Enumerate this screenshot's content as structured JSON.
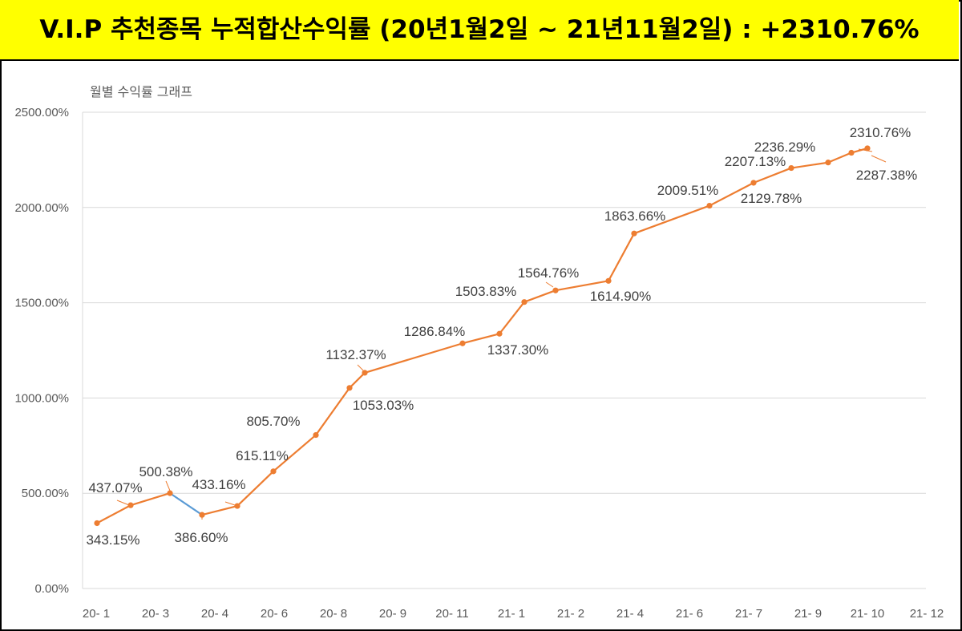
{
  "banner": {
    "title": "V.I.P 추천종목 누적합산수익률 (20년1월2일 ~ 21년11월2일) : +2310.76%",
    "background": "#ffff00"
  },
  "chart_data": {
    "type": "line",
    "title": "월별 수익률 그래프",
    "xlabel": "",
    "ylabel": "",
    "ylim": [
      0,
      2500
    ],
    "y_ticks": [
      "0.00%",
      "500.00%",
      "1000.00%",
      "1500.00%",
      "2000.00%",
      "2500.00%"
    ],
    "y_tick_values": [
      0,
      500,
      1000,
      1500,
      2000,
      2500
    ],
    "x_tick_labels": [
      "20- 1",
      "20- 3",
      "20- 4",
      "20- 6",
      "20- 8",
      "20- 9",
      "20- 11",
      "21- 1",
      "21- 2",
      "21- 4",
      "21- 6",
      "21- 7",
      "21- 9",
      "21- 10",
      "21- 12"
    ],
    "grid": "horizontal",
    "series_color": "#ed7d31",
    "down_color": "#5b9bd5",
    "points": [
      {
        "value": 343.15,
        "label": "343.15%"
      },
      {
        "value": 437.07,
        "label": "437.07%"
      },
      {
        "value": 500.38,
        "label": "500.38%"
      },
      {
        "value": 386.6,
        "label": "386.60%"
      },
      {
        "value": 433.16,
        "label": "433.16%"
      },
      {
        "value": 615.11,
        "label": "615.11%"
      },
      {
        "value": 805.7,
        "label": "805.70%"
      },
      {
        "value": 1053.03,
        "label": "1053.03%"
      },
      {
        "value": 1132.37,
        "label": "1132.37%"
      },
      {
        "value": 1286.84,
        "label": "1286.84%"
      },
      {
        "value": 1337.3,
        "label": "1337.30%"
      },
      {
        "value": 1503.83,
        "label": "1503.83%"
      },
      {
        "value": 1564.76,
        "label": "1564.76%"
      },
      {
        "value": 1614.9,
        "label": "1614.90%"
      },
      {
        "value": 1863.66,
        "label": "1863.66%"
      },
      {
        "value": 2009.51,
        "label": "2009.51%"
      },
      {
        "value": 2129.78,
        "label": "2129.78%"
      },
      {
        "value": 2207.13,
        "label": "2207.13%"
      },
      {
        "value": 2236.29,
        "label": "2236.29%"
      },
      {
        "value": 2287.38,
        "label": "2287.38%"
      },
      {
        "value": 2310.76,
        "label": "2310.76%"
      }
    ]
  }
}
